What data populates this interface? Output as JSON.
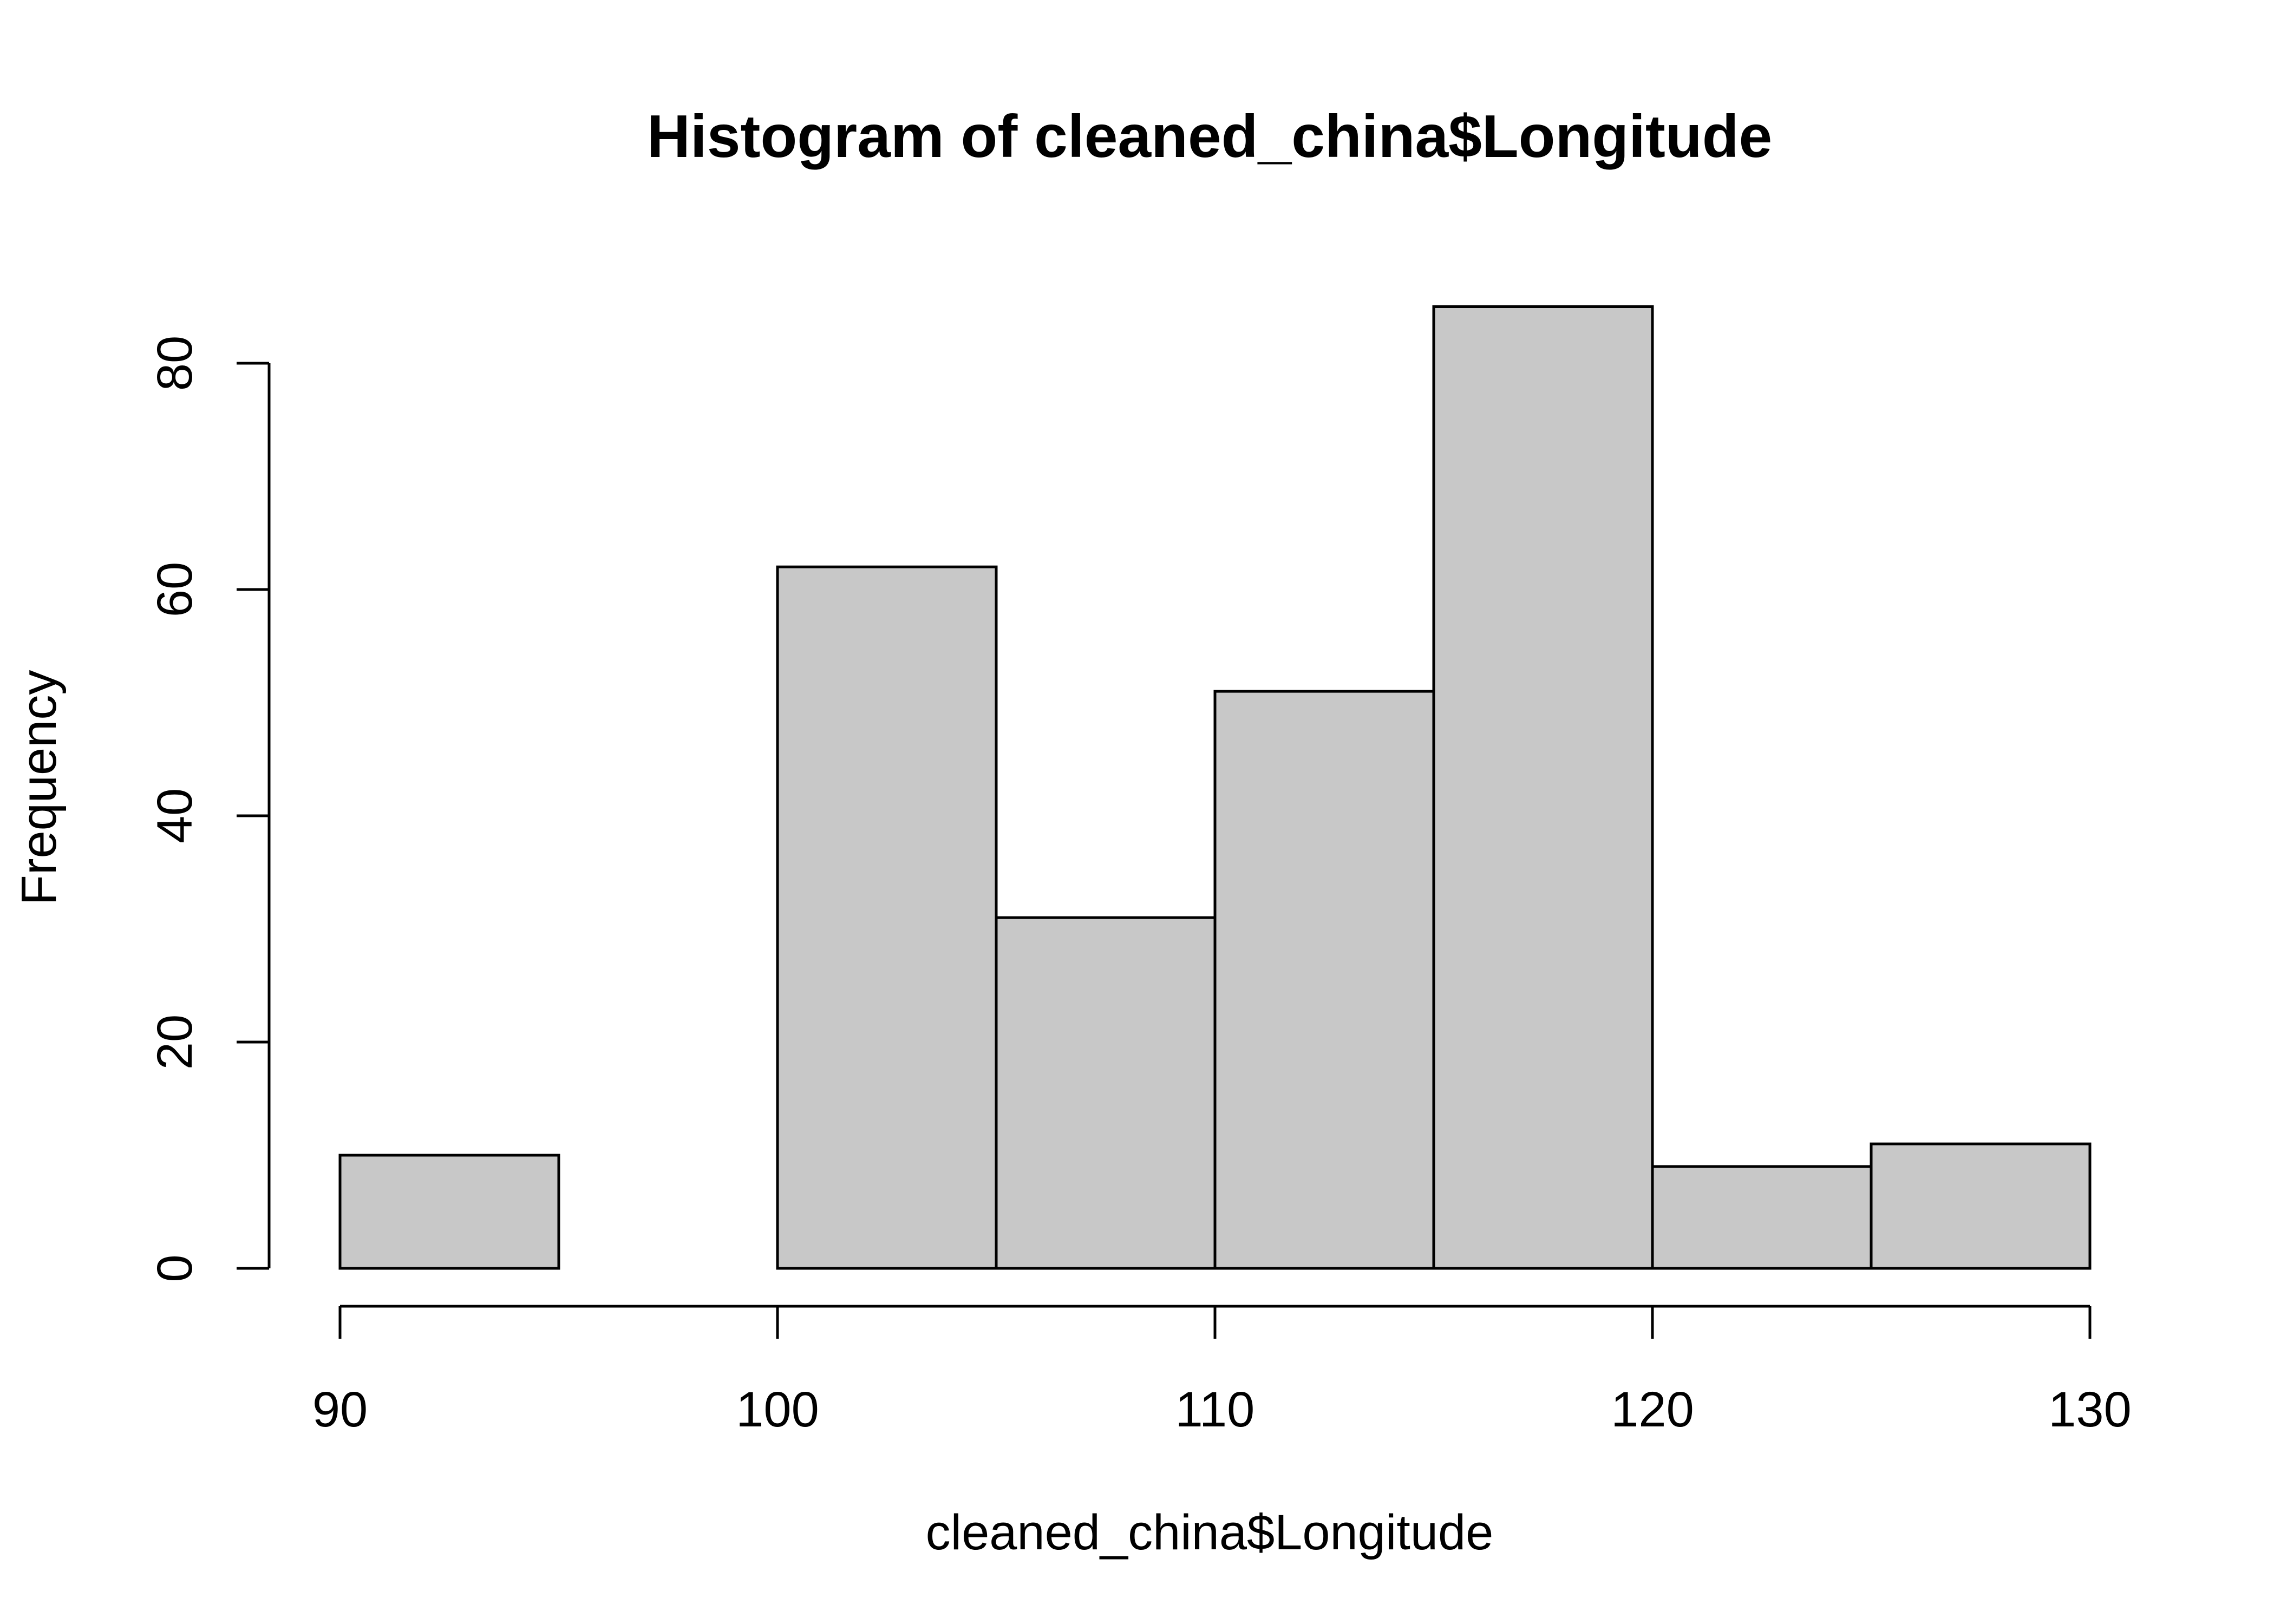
{
  "chart_data": {
    "type": "bar",
    "title": "Histogram of cleaned_china$Longitude",
    "xlabel": "cleaned_china$Longitude",
    "ylabel": "Frequency",
    "bins": [
      {
        "from": 90,
        "to": 95,
        "count": 10
      },
      {
        "from": 95,
        "to": 100,
        "count": 0
      },
      {
        "from": 100,
        "to": 105,
        "count": 62
      },
      {
        "from": 105,
        "to": 110,
        "count": 31
      },
      {
        "from": 110,
        "to": 115,
        "count": 51
      },
      {
        "from": 115,
        "to": 120,
        "count": 85
      },
      {
        "from": 120,
        "to": 125,
        "count": 9
      },
      {
        "from": 125,
        "to": 130,
        "count": 11
      }
    ],
    "xlim": [
      90,
      130
    ],
    "ylim": [
      0,
      85
    ],
    "xticks": [
      90,
      100,
      110,
      120,
      130
    ],
    "yticks": [
      0,
      20,
      40,
      60,
      80
    ],
    "bar_color": "#c8c8c8",
    "grid": false
  }
}
